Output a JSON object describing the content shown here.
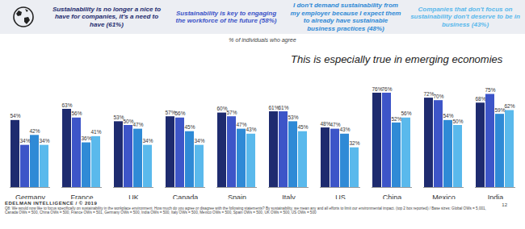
{
  "chart_data": {
    "type": "bar",
    "subtitle": "% of individuals who agree",
    "annotation": "This is especially true in emerging economies",
    "footer": "EDELMAN INTELLIGENCE / © 2019",
    "note": "Q8: We would now like to focus specifically on sustainability in the workplace environment. How much do you agree or disagree with the following statements? By sustainability, we mean any and all efforts to limit our environmental impact. (top 2 box reported) / Base sizes: Global OWs = 5,001, Canada OWs = 500, China OWs = 500, France OWs = 501, Germany OWs = 500, India OWs = 500, Italy OWs = 500, Mexico OWs = 500, Spain OWs = 500, UK OWs = 500, US OWs = 500",
    "page_number": 12,
    "categories": [
      "Germany",
      "France",
      "UK",
      "Canada",
      "Spain",
      "Italy",
      "US",
      "China",
      "Mexico",
      "India"
    ],
    "series": [
      {
        "name": "Sustainability is no longer a nice to have for companies, it's a need to have (61%)",
        "color": "#1e2b6f",
        "values": [
          54,
          63,
          53,
          57,
          60,
          61,
          48,
          76,
          72,
          68
        ],
        "value_labels": [
          "54%",
          "63%",
          "53%",
          "57%",
          "60%",
          "61%",
          "48%",
          "76%",
          "72%",
          "68%"
        ]
      },
      {
        "name": "Sustainability is key to engaging the workforce of the future (58%)",
        "color": "#3d55c8",
        "values": [
          34,
          56,
          50,
          56,
          57,
          61,
          47,
          76,
          70,
          75
        ],
        "value_labels": [
          "34%",
          "56%",
          "50%",
          "56%",
          "57%",
          "61%",
          "47%",
          "76%",
          "70%",
          "75%"
        ]
      },
      {
        "name": "I don't demand sustainability from my employer because I expect them to already have sustainable business practices (48%)",
        "color": "#2f8ad6",
        "values": [
          42,
          36,
          47,
          45,
          47,
          53,
          43,
          52,
          54,
          59
        ],
        "value_labels": [
          "42%",
          "36%",
          "47%",
          "45%",
          "47%",
          "53%",
          "43%",
          "52%",
          "54%",
          "59%"
        ]
      },
      {
        "name": "Companies that don't focus on sustainability don't deserve to be in business (43%)",
        "color": "#5ab9ec",
        "values": [
          34,
          41,
          34,
          34,
          43,
          45,
          32,
          56,
          50,
          62
        ],
        "value_labels": [
          "34%",
          "41%",
          "34%",
          "34%",
          "43%",
          "45%",
          "32%",
          "56%",
          "50%",
          "62%"
        ]
      }
    ],
    "ylim": [
      0,
      100
    ],
    "data_labels": true,
    "tick_labels": "x",
    "legend": "top",
    "grid": false
  }
}
